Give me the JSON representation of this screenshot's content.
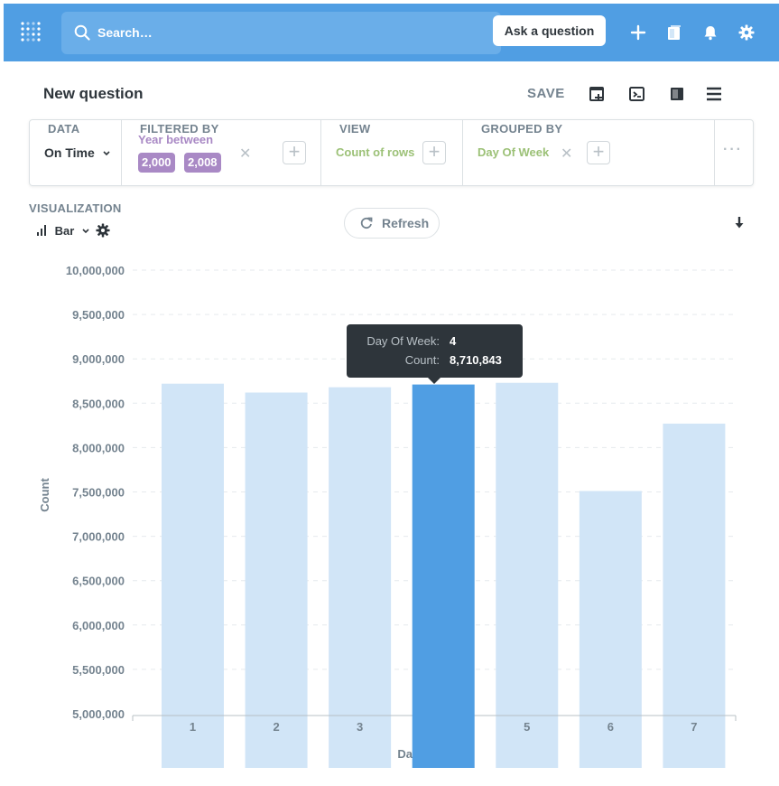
{
  "nav": {
    "search_placeholder": "Search…",
    "ask_label": "Ask a question",
    "icons": [
      "metabase-logo-icon",
      "search-icon",
      "plus-icon",
      "collection-icon",
      "bell-icon",
      "gear-icon"
    ],
    "bg_color": "#509ee3"
  },
  "header": {
    "title": "New question",
    "save_label": "SAVE",
    "icons": [
      "add-to-dashboard-icon",
      "sql-icon",
      "reference-icon",
      "menu-icon"
    ]
  },
  "query": {
    "data_label": "DATA",
    "data_value": "On Time",
    "filter_label": "FILTERED BY",
    "filter_text": "Year between",
    "filter_values": [
      "2,000",
      "2,008"
    ],
    "view_label": "VIEW",
    "view_value": "Count of rows",
    "group_label": "GROUPED BY",
    "group_value": "Day Of Week",
    "more_label": "···"
  },
  "viz": {
    "label": "VISUALIZATION",
    "type": "Bar",
    "refresh_label": "Refresh"
  },
  "tooltip": {
    "key1": "Day Of Week:",
    "val1": "4",
    "key2": "Count:",
    "val2": "8,710,843"
  },
  "chart_data": {
    "type": "bar",
    "categories": [
      "1",
      "2",
      "3",
      "4",
      "5",
      "6",
      "7"
    ],
    "values": [
      8720000,
      8620000,
      8680000,
      8710843,
      8730000,
      7510000,
      8270000
    ],
    "highlighted_index": 3,
    "xlabel": "Day Of Week",
    "ylabel": "Count",
    "ylim": [
      5000000,
      10000000
    ],
    "y_ticks": [
      "10,000,000",
      "9,500,000",
      "9,000,000",
      "8,500,000",
      "8,000,000",
      "7,500,000",
      "7,000,000",
      "6,500,000",
      "6,000,000",
      "5,500,000",
      "5,000,000"
    ],
    "bar_color": "#d1e5f7",
    "highlight_color": "#509ee3",
    "grid": true
  }
}
